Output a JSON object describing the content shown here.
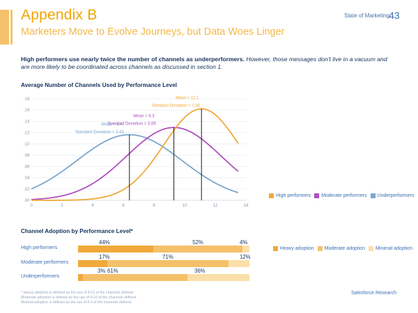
{
  "header": {
    "title": "Appendix B",
    "subtitle": "Marketers Move to Evolve Journeys, but Data Woes Linger",
    "brand": "State of Marketing",
    "page_number": "43"
  },
  "intro": {
    "bold": "High performers use nearly twice the number of channels as underperformers.",
    "italic": " However, those messages don't live in a vacuum and are more likely to be coordinated across channels as discussed in section 1."
  },
  "colors": {
    "high": "#f0a93a",
    "moderate": "#b04fc0",
    "under": "#7aa6cf",
    "heavy": "#f0a93a",
    "moderate_adoption": "#f5c06a",
    "minimal": "#fbdfa8"
  },
  "chart_data": [
    {
      "type": "line",
      "title": "Average Number of Channels Used by Performance Level",
      "xlim": [
        0,
        14
      ],
      "ylim": [
        0,
        0.18
      ],
      "x_ticks": [
        "0",
        "2",
        "4",
        "6",
        "8",
        "10",
        "12",
        "14"
      ],
      "y_ticks": [
        ".00",
        ".02",
        ".04",
        ".06",
        ".08",
        ".10",
        ".12",
        ".14",
        ".16",
        ".18"
      ],
      "series": [
        {
          "name": "High performers",
          "mean": 11.1,
          "sd": 2.46,
          "x_range": [
            0,
            13.5
          ]
        },
        {
          "name": "Moderate performers",
          "mean": 9.3,
          "sd": 3.09,
          "x_range": [
            0,
            13.5
          ]
        },
        {
          "name": "Underperformers",
          "mean": 6.4,
          "sd": 3.43,
          "x_range": [
            0,
            13.5
          ]
        }
      ],
      "annotations": [
        {
          "mean_label": "Mean = 11.1",
          "sd_label": "Standard Deviation = 2.46"
        },
        {
          "mean_label": "Mean = 9.3",
          "sd_label": "Standard Deviation = 3.09"
        },
        {
          "mean_label": "Mean = 6.4",
          "sd_label": "Standard Deviation = 3.43"
        }
      ],
      "legend": [
        "High performers",
        "Moderate performers",
        "Underperformers"
      ],
      "legend_position": "right"
    },
    {
      "type": "bar",
      "title": "Channel Adoption by Performance Level*",
      "categories": [
        "High performers",
        "Moderate performers",
        "Underperformers"
      ],
      "series": [
        {
          "name": "Heavy adoption",
          "values": [
            44,
            17,
            3
          ]
        },
        {
          "name": "Moderate adoption",
          "values": [
            52,
            71,
            61
          ]
        },
        {
          "name": "Minimal adoption",
          "values": [
            4,
            12,
            36
          ]
        }
      ],
      "value_labels": [
        [
          "44%",
          "52%",
          "4%"
        ],
        [
          "17%",
          "71%",
          "12%"
        ],
        [
          "3%",
          "61%",
          "36%"
        ]
      ],
      "legend": [
        "Heavy adoption",
        "Moderate adoption",
        "Minimal adoption"
      ],
      "legend_position": "right"
    }
  ],
  "footnotes": [
    "* Heavy adoption is defined as the use of 8-13 of the channels defined.",
    "  Moderate adoption is defined as the use of 4-10 of the channels defined.",
    "  Minimal adoption is defined as the use of 0-3 of the channels defined."
  ],
  "source": "Salesforce Research"
}
